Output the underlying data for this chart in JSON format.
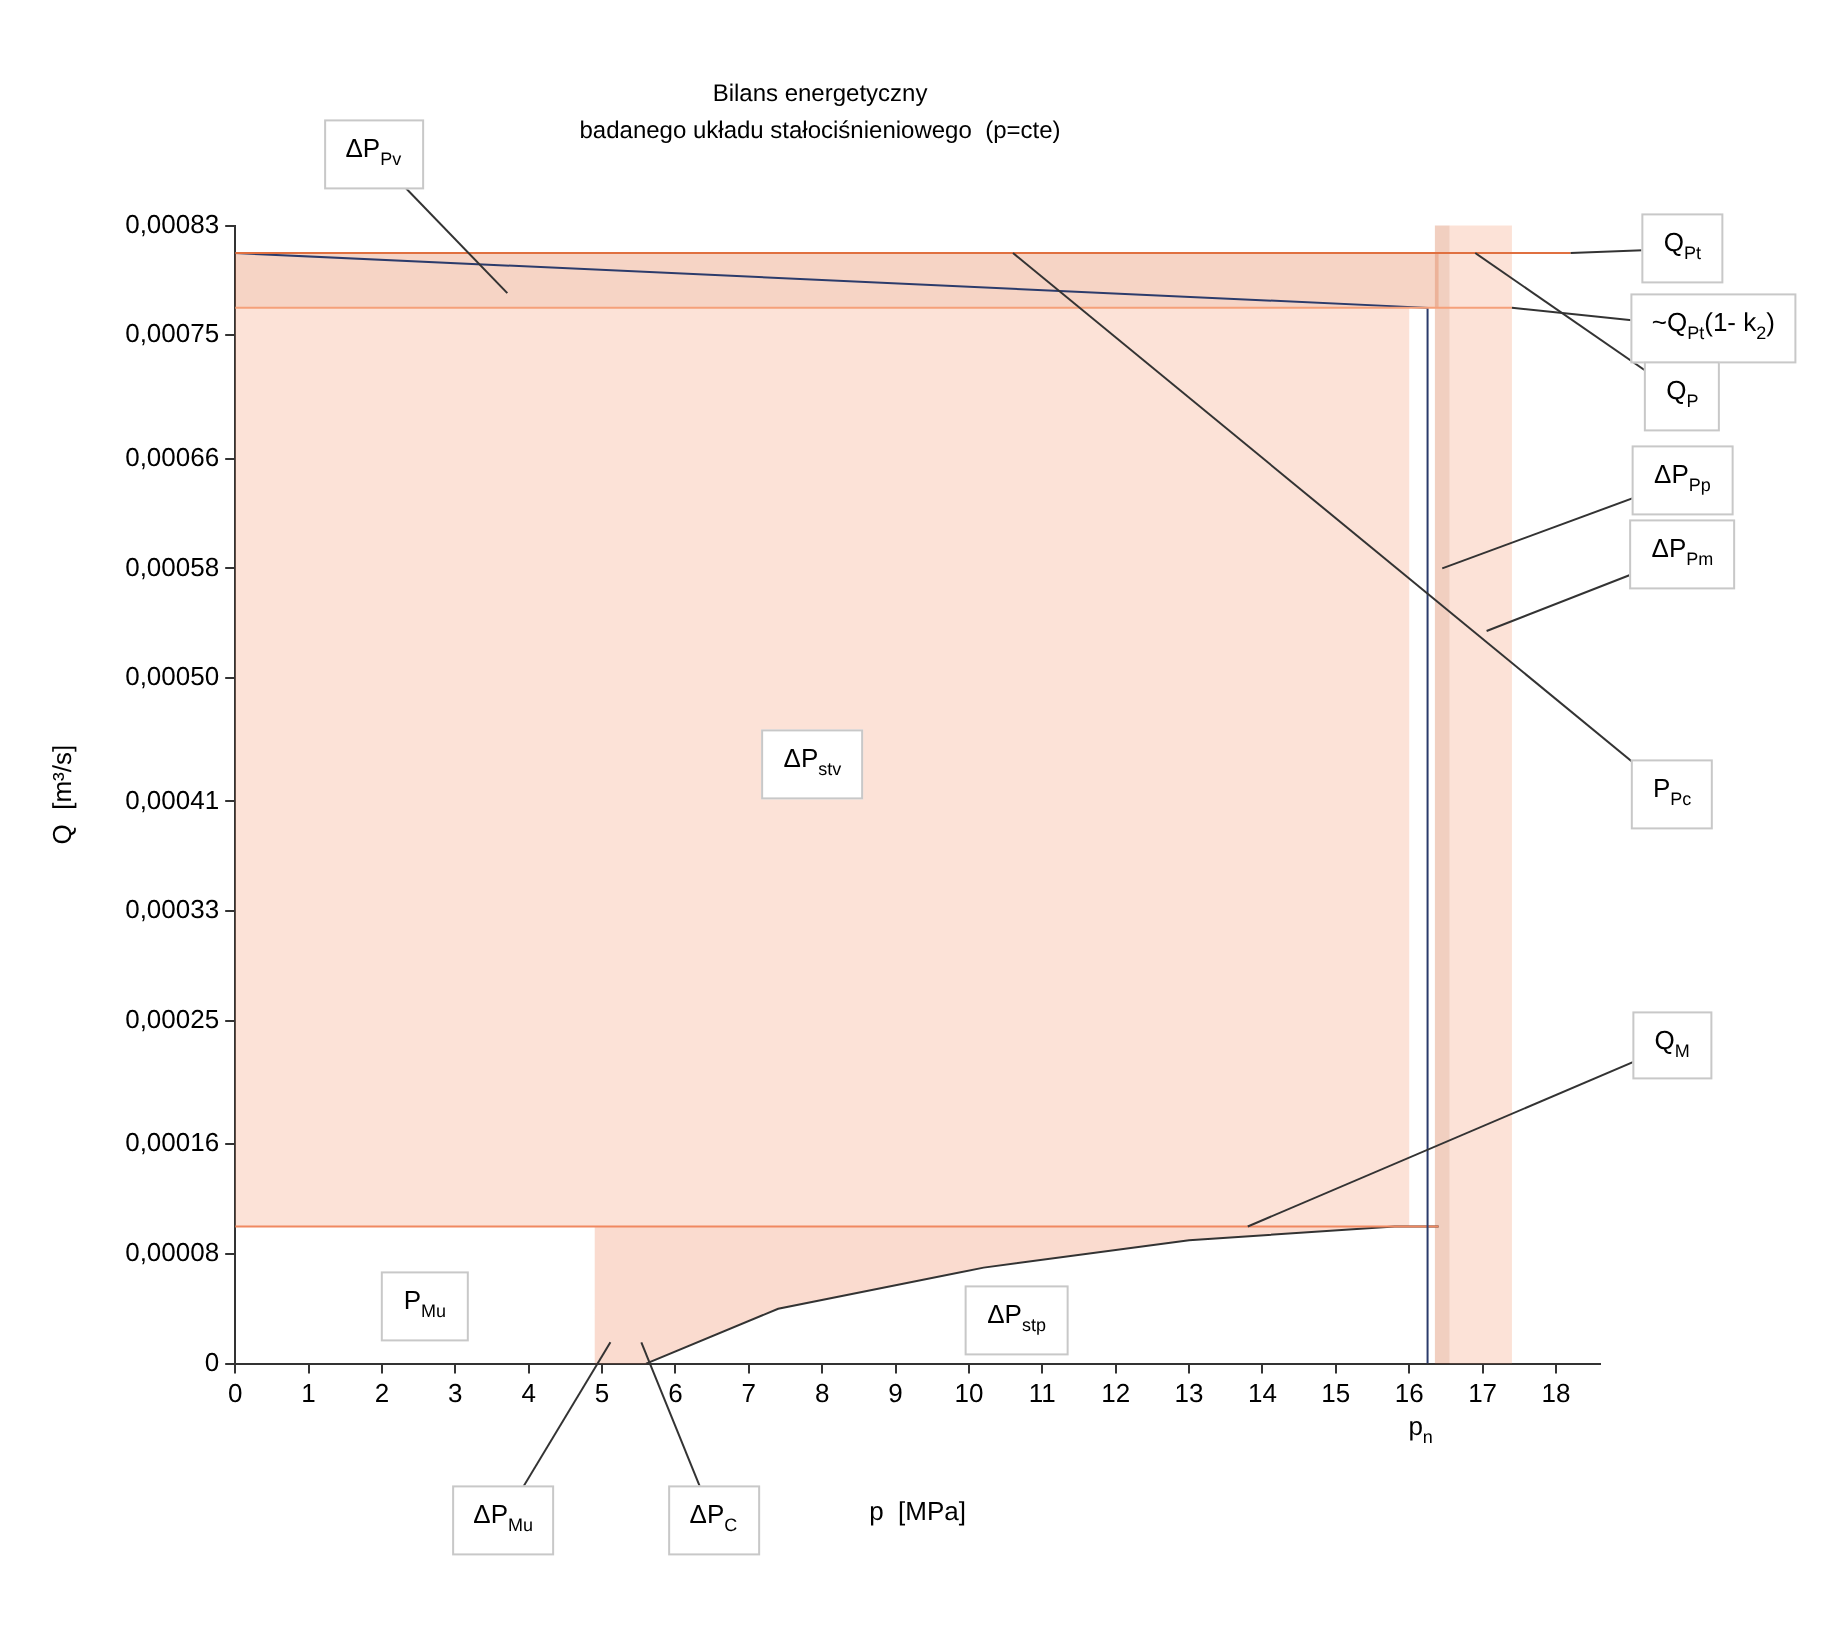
{
  "chart_data": {
    "type": "line",
    "title": "Bilans energetyczny",
    "subtitle": "badanego układu stałociśnieniowego  (p=cte)",
    "xlabel": "p  [MPa]",
    "ylabel": "Q  [m³/s]",
    "xlim": [
      0,
      18.6
    ],
    "xticks": [
      0,
      1,
      2,
      3,
      4,
      5,
      6,
      7,
      8,
      9,
      10,
      11,
      12,
      13,
      14,
      15,
      16,
      17,
      18
    ],
    "ylim": [
      0,
      0.00083
    ],
    "yticks": [
      0,
      {
        "value": 8e-05,
        "label": "0,00008"
      },
      {
        "value": 0.00016,
        "label": "0,00016"
      },
      {
        "value": 0.00025,
        "label": "0,00025"
      },
      {
        "value": 0.00033,
        "label": "0,00033"
      },
      {
        "value": 0.00041,
        "label": "0,00041"
      },
      {
        "value": 0.0005,
        "label": "0,00050"
      },
      {
        "value": 0.00058,
        "label": "0,00058"
      },
      {
        "value": 0.00066,
        "label": "0,00066"
      },
      {
        "value": 0.00075,
        "label": "0,00075"
      },
      {
        "value": 0.00083,
        "label": "0,00083"
      }
    ],
    "series": [
      {
        "color": "#e07040",
        "x": [
          0,
          16.4,
          18.2
        ],
        "values": [
          0.00081,
          0.00081,
          0.00081
        ],
        "lower": [
          0.00077,
          0.00077,
          null
        ],
        "upper": [
          0.00081,
          0.00081,
          null
        ]
      },
      {
        "color": "#f5a07a",
        "x": [
          0,
          16,
          17.4
        ],
        "values": [
          0.00077,
          0.00077,
          0.00077
        ],
        "lower": [
          0.0001,
          0.0001,
          null
        ],
        "upper": [
          0.00077,
          0.00077,
          null
        ]
      },
      {
        "color": "#2b3b6b",
        "x": [
          0,
          16.25,
          16.25
        ],
        "values": [
          0.00081,
          0.00077,
          0
        ]
      },
      {
        "color": "#f08860",
        "x": [
          0,
          4.9,
          5.4,
          5.6,
          7.4,
          10.2,
          13,
          15.8,
          16.4
        ],
        "values": [
          0.0001,
          0.0001,
          0.0001,
          0.0001,
          0.0001,
          0.0001,
          0.0001,
          0.0001,
          0.0001
        ],
        "lower": [
          null,
          0,
          0,
          0,
          4e-05,
          7e-05,
          9e-05,
          0.0001,
          0.0001
        ],
        "upper": [
          null,
          0.0001,
          0.0001,
          0.0001,
          0.0001,
          0.0001,
          0.0001,
          0.0001,
          0.0001
        ]
      },
      {
        "color": "#333333",
        "x": [
          5.6,
          7.4,
          10.2,
          13,
          15.8,
          16.4
        ],
        "values": [
          0,
          4e-05,
          7e-05,
          9e-05,
          0.0001,
          0.0001
        ]
      }
    ],
    "bands": [
      {
        "axis": "x",
        "from": 16.35,
        "to": 16.55,
        "color": "#d06030"
      },
      {
        "axis": "x",
        "from": 16.55,
        "to": 17.4,
        "color": "#f5a07a"
      }
    ],
    "annotations": [
      "ΔP$_{Pv}$",
      {
        "text": "Q$_{Pt}$",
        "x": 18.2,
        "y": 0.00081
      },
      {
        "text": "~Q$_{Pt}$(1- k$_{2}$)",
        "x": 17.4,
        "y": 0.00077
      },
      {
        "text": "Q$_{P}$",
        "x": 16.9,
        "y": 0.00081
      },
      {
        "text": "ΔP$_{Pp}$",
        "x": 16.45,
        "y": 0.00058
      },
      "ΔP$_{Pm}$",
      {
        "text": "P$_{Pc}$",
        "x": 10.6,
        "y": 0.00081
      },
      {
        "text": "Q$_{M}$",
        "x": 13.8,
        "y": 0.0001
      },
      "ΔP$_{stv}$",
      "P$_{Mu}$",
      "ΔP$_{stp}$",
      "ΔP$_{Mu}$",
      "ΔP$_{C}$",
      {
        "text": "p$_{n}$",
        "x": 16.25,
        "y": 0
      }
    ]
  }
}
